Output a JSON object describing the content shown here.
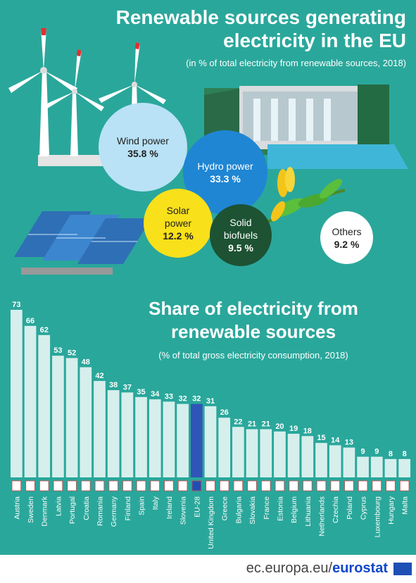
{
  "header": {
    "title": "Renewable sources generating electricity in the EU",
    "subtitle": "(in % of total electricity from renewable sources, 2018)"
  },
  "sources": [
    {
      "label": "Wind power",
      "value": "35.8 %"
    },
    {
      "label": "Hydro power",
      "value": "33.3 %"
    },
    {
      "label": "Solar power",
      "value": "12.2 %"
    },
    {
      "label": "Solid biofuels",
      "value": "9.5 %"
    },
    {
      "label": "Others",
      "value": "9.2 %"
    }
  ],
  "section2": {
    "title": "Share of electricity from renewable sources",
    "subtitle": "(% of total gross electricity consumption, 2018)"
  },
  "colors": {
    "background": "#2aa79b",
    "bar": "#d6efec",
    "bar_highlight": "#2f55b8",
    "wind": "#b9e2f6",
    "hydro": "#1f86d3",
    "solar": "#f8e01a",
    "biofuels": "#1d5233",
    "others": "#ffffff"
  },
  "chart_data": {
    "type": "bar",
    "categories": [
      "Austria",
      "Sweden",
      "Denmark",
      "Latvia",
      "Portugal",
      "Croatia",
      "Romania",
      "Germany",
      "Finland",
      "Spain",
      "Italy",
      "Ireland",
      "Slovenia",
      "EU-28",
      "United Kingdom",
      "Greece",
      "Bulgaria",
      "Slovakia",
      "France",
      "Estonia",
      "Belgium",
      "Lithuania",
      "Netherlands",
      "Czechia",
      "Poland",
      "Cyprus",
      "Luxembourg",
      "Hungary",
      "Malta"
    ],
    "values": [
      73,
      66,
      62,
      53,
      52,
      48,
      42,
      38,
      37,
      35,
      34,
      33,
      32,
      32,
      31,
      26,
      22,
      21,
      21,
      20,
      19,
      18,
      15,
      14,
      13,
      9,
      9,
      8,
      8
    ],
    "highlight": "EU-28",
    "ylim": [
      0,
      73
    ],
    "grid": false,
    "data_labels": true
  },
  "footer": {
    "source_prefix": "ec.europa.eu/",
    "source_brand": "eurostat"
  }
}
